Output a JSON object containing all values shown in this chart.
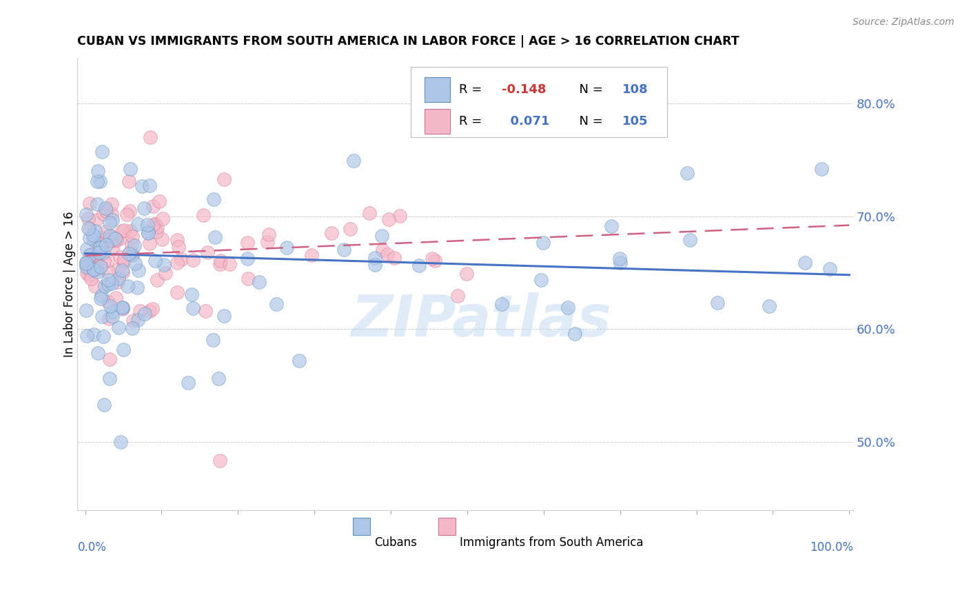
{
  "title": "CUBAN VS IMMIGRANTS FROM SOUTH AMERICA IN LABOR FORCE | AGE > 16 CORRELATION CHART",
  "source": "Source: ZipAtlas.com",
  "ylabel": "In Labor Force | Age > 16",
  "ytick_labels": [
    "50.0%",
    "60.0%",
    "70.0%",
    "80.0%"
  ],
  "ytick_values": [
    0.5,
    0.6,
    0.7,
    0.8
  ],
  "xlim": [
    0.0,
    1.0
  ],
  "ylim": [
    0.44,
    0.84
  ],
  "legend_R_cubans": "-0.148",
  "legend_N_cubans": "108",
  "legend_R_south": "0.071",
  "legend_N_south": "105",
  "color_cubans_fill": "#aec6e8",
  "color_cubans_edge": "#5b8db8",
  "color_south_fill": "#f4b8c8",
  "color_south_edge": "#d07090",
  "color_trend_cubans": "#4472c4",
  "color_trend_south": "#d06080",
  "watermark_color": "#b8d4ee",
  "grid_color": "#cccccc",
  "legend_R_neg_color": "#cc3333",
  "legend_R_pos_color": "#4472c4",
  "legend_N_color": "#4472c4",
  "ytick_color": "#4472c4",
  "xlabel_color": "#4472c4"
}
